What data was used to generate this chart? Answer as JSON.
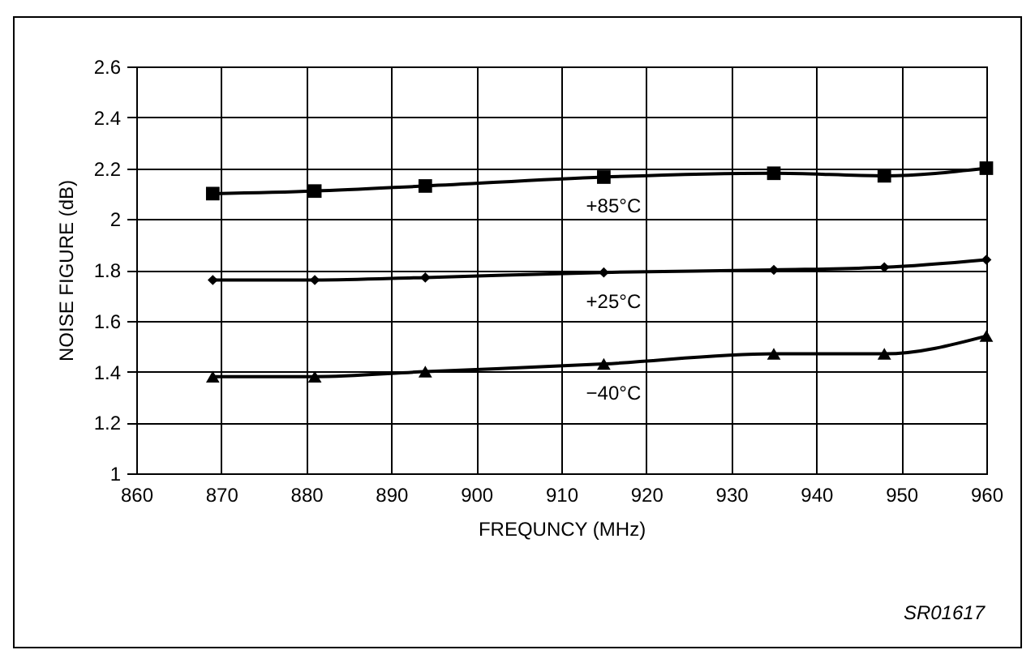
{
  "chart_data": {
    "type": "line",
    "xlabel": "FREQUNCY (MHz)",
    "ylabel": "NOISE FIGURE (dB)",
    "x": [
      869,
      881,
      894,
      915,
      935,
      948,
      960
    ],
    "series": [
      {
        "name": "+85°C",
        "color": "#000000",
        "marker": "square",
        "values": [
          2.1,
          2.11,
          2.13,
          2.165,
          2.18,
          2.17,
          2.2
        ]
      },
      {
        "name": "+25°C",
        "color": "#000000",
        "marker": "diamond",
        "values": [
          1.76,
          1.76,
          1.77,
          1.79,
          1.8,
          1.81,
          1.84
        ]
      },
      {
        "name": "−40°C",
        "color": "#000000",
        "marker": "triangle",
        "values": [
          1.38,
          1.38,
          1.4,
          1.43,
          1.47,
          1.47,
          1.54
        ]
      }
    ],
    "xlim": [
      860,
      960
    ],
    "xticks": [
      860,
      870,
      880,
      890,
      900,
      910,
      920,
      930,
      940,
      950,
      960
    ],
    "ylim": [
      1,
      2.6
    ],
    "yticks": [
      1,
      1.2,
      1.4,
      1.6,
      1.8,
      2,
      2.2,
      2.4,
      2.6
    ],
    "grid": true,
    "line_style": "solid",
    "annotations": [
      "SR01617"
    ]
  }
}
